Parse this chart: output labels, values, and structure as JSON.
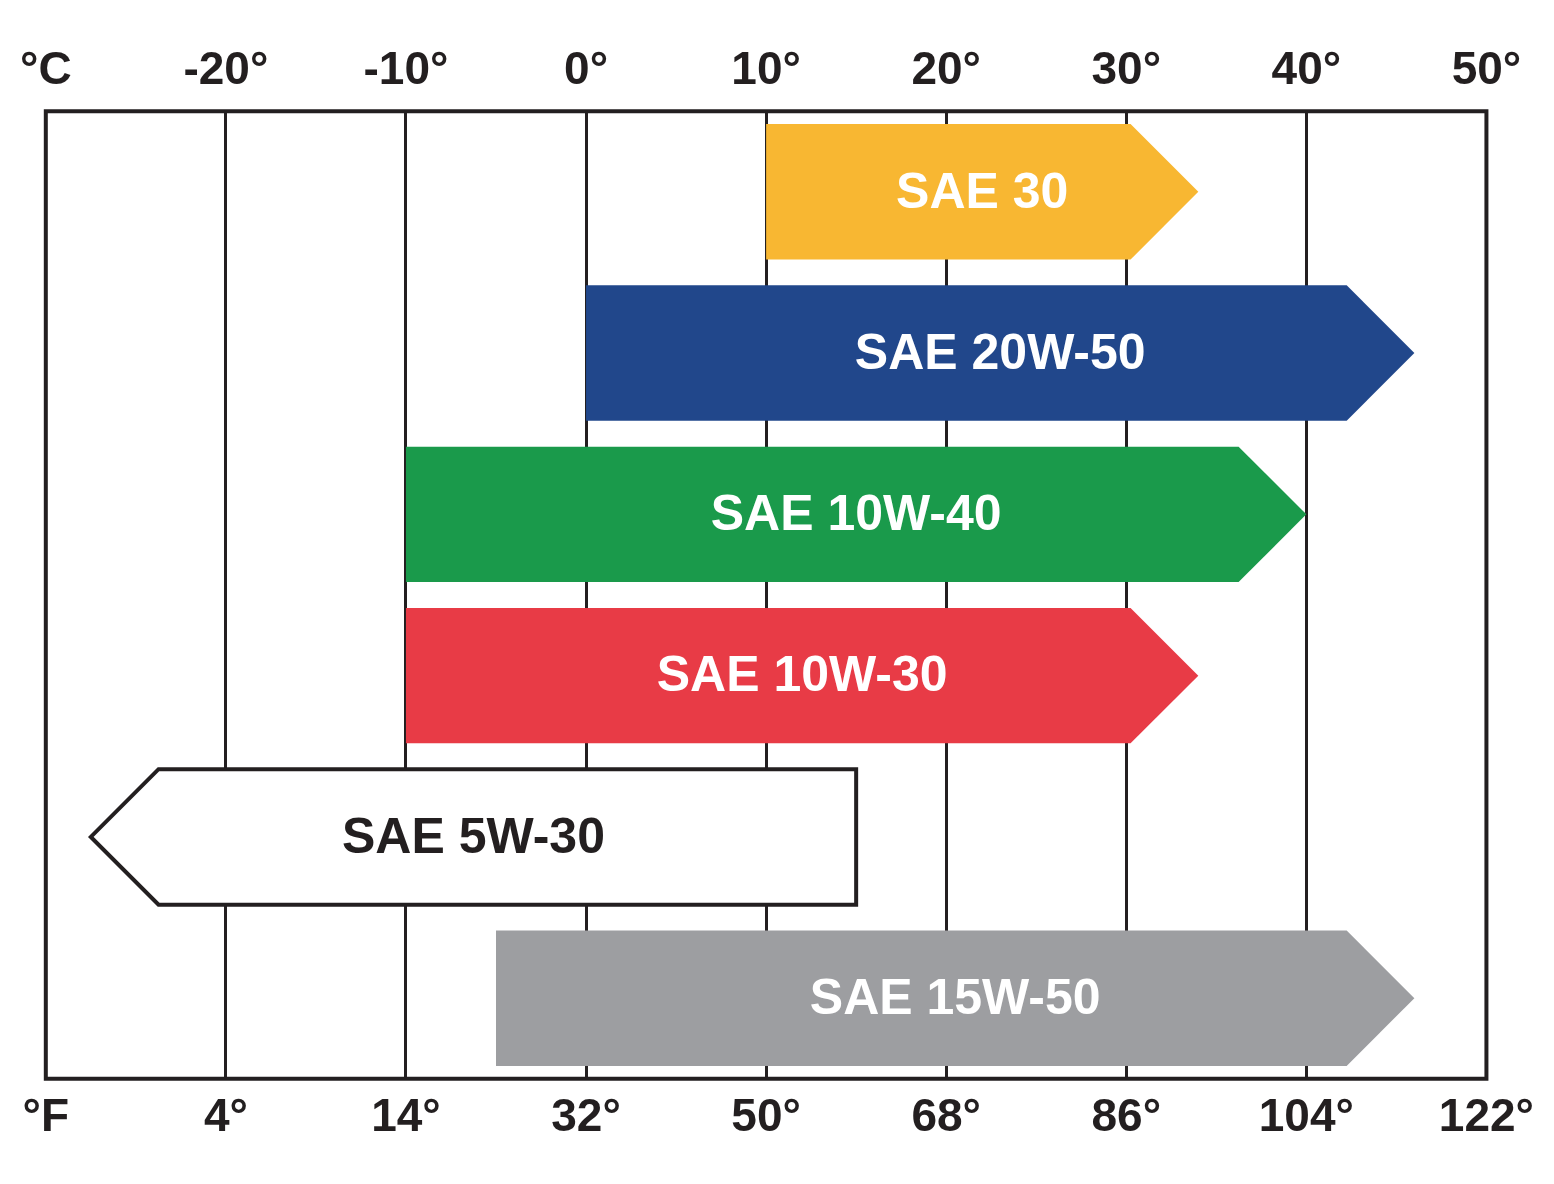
{
  "chart_data": {
    "type": "bar",
    "orientation": "horizontal",
    "categories": [
      "SAE 30",
      "SAE 20W-50",
      "SAE 10W-40",
      "SAE 10W-30",
      "SAE 5W-30",
      "SAE 15W-50"
    ],
    "series": [
      {
        "axis": "x2",
        "base": [
          10,
          0,
          -10,
          -10,
          15,
          -5
        ],
        "values": [
          24,
          46,
          50,
          44,
          -42.5,
          51
        ],
        "colors": [
          "#f8b732",
          "#21478b",
          "#1a9a4b",
          "#e83b46",
          "#ffffff",
          "#9d9ea1"
        ]
      }
    ],
    "xlim": [
      -22,
      122
    ],
    "xticks": [
      {
        "value": -22,
        "label": "°F"
      },
      {
        "value": -4,
        "label": "4°"
      },
      {
        "value": 14,
        "label": "14°"
      },
      {
        "value": 32,
        "label": "32°"
      },
      {
        "value": 50,
        "label": "50°"
      },
      {
        "value": 68,
        "label": "68°"
      },
      {
        "value": 86,
        "label": "86°"
      },
      {
        "value": 104,
        "label": "104°"
      },
      {
        "value": 122,
        "label": "122°"
      }
    ],
    "x2lim": [
      -30,
      50
    ],
    "x2ticks": [
      {
        "value": -30,
        "label": "°C"
      },
      {
        "value": -20,
        "label": "-20°"
      },
      {
        "value": -10,
        "label": "-10°"
      },
      {
        "value": 0,
        "label": "0°"
      },
      {
        "value": 10,
        "label": "10°"
      },
      {
        "value": 20,
        "label": "20°"
      },
      {
        "value": 30,
        "label": "30°"
      },
      {
        "value": 40,
        "label": "40°"
      },
      {
        "value": 50,
        "label": "50°"
      }
    ],
    "grid": "x",
    "legend": false
  }
}
